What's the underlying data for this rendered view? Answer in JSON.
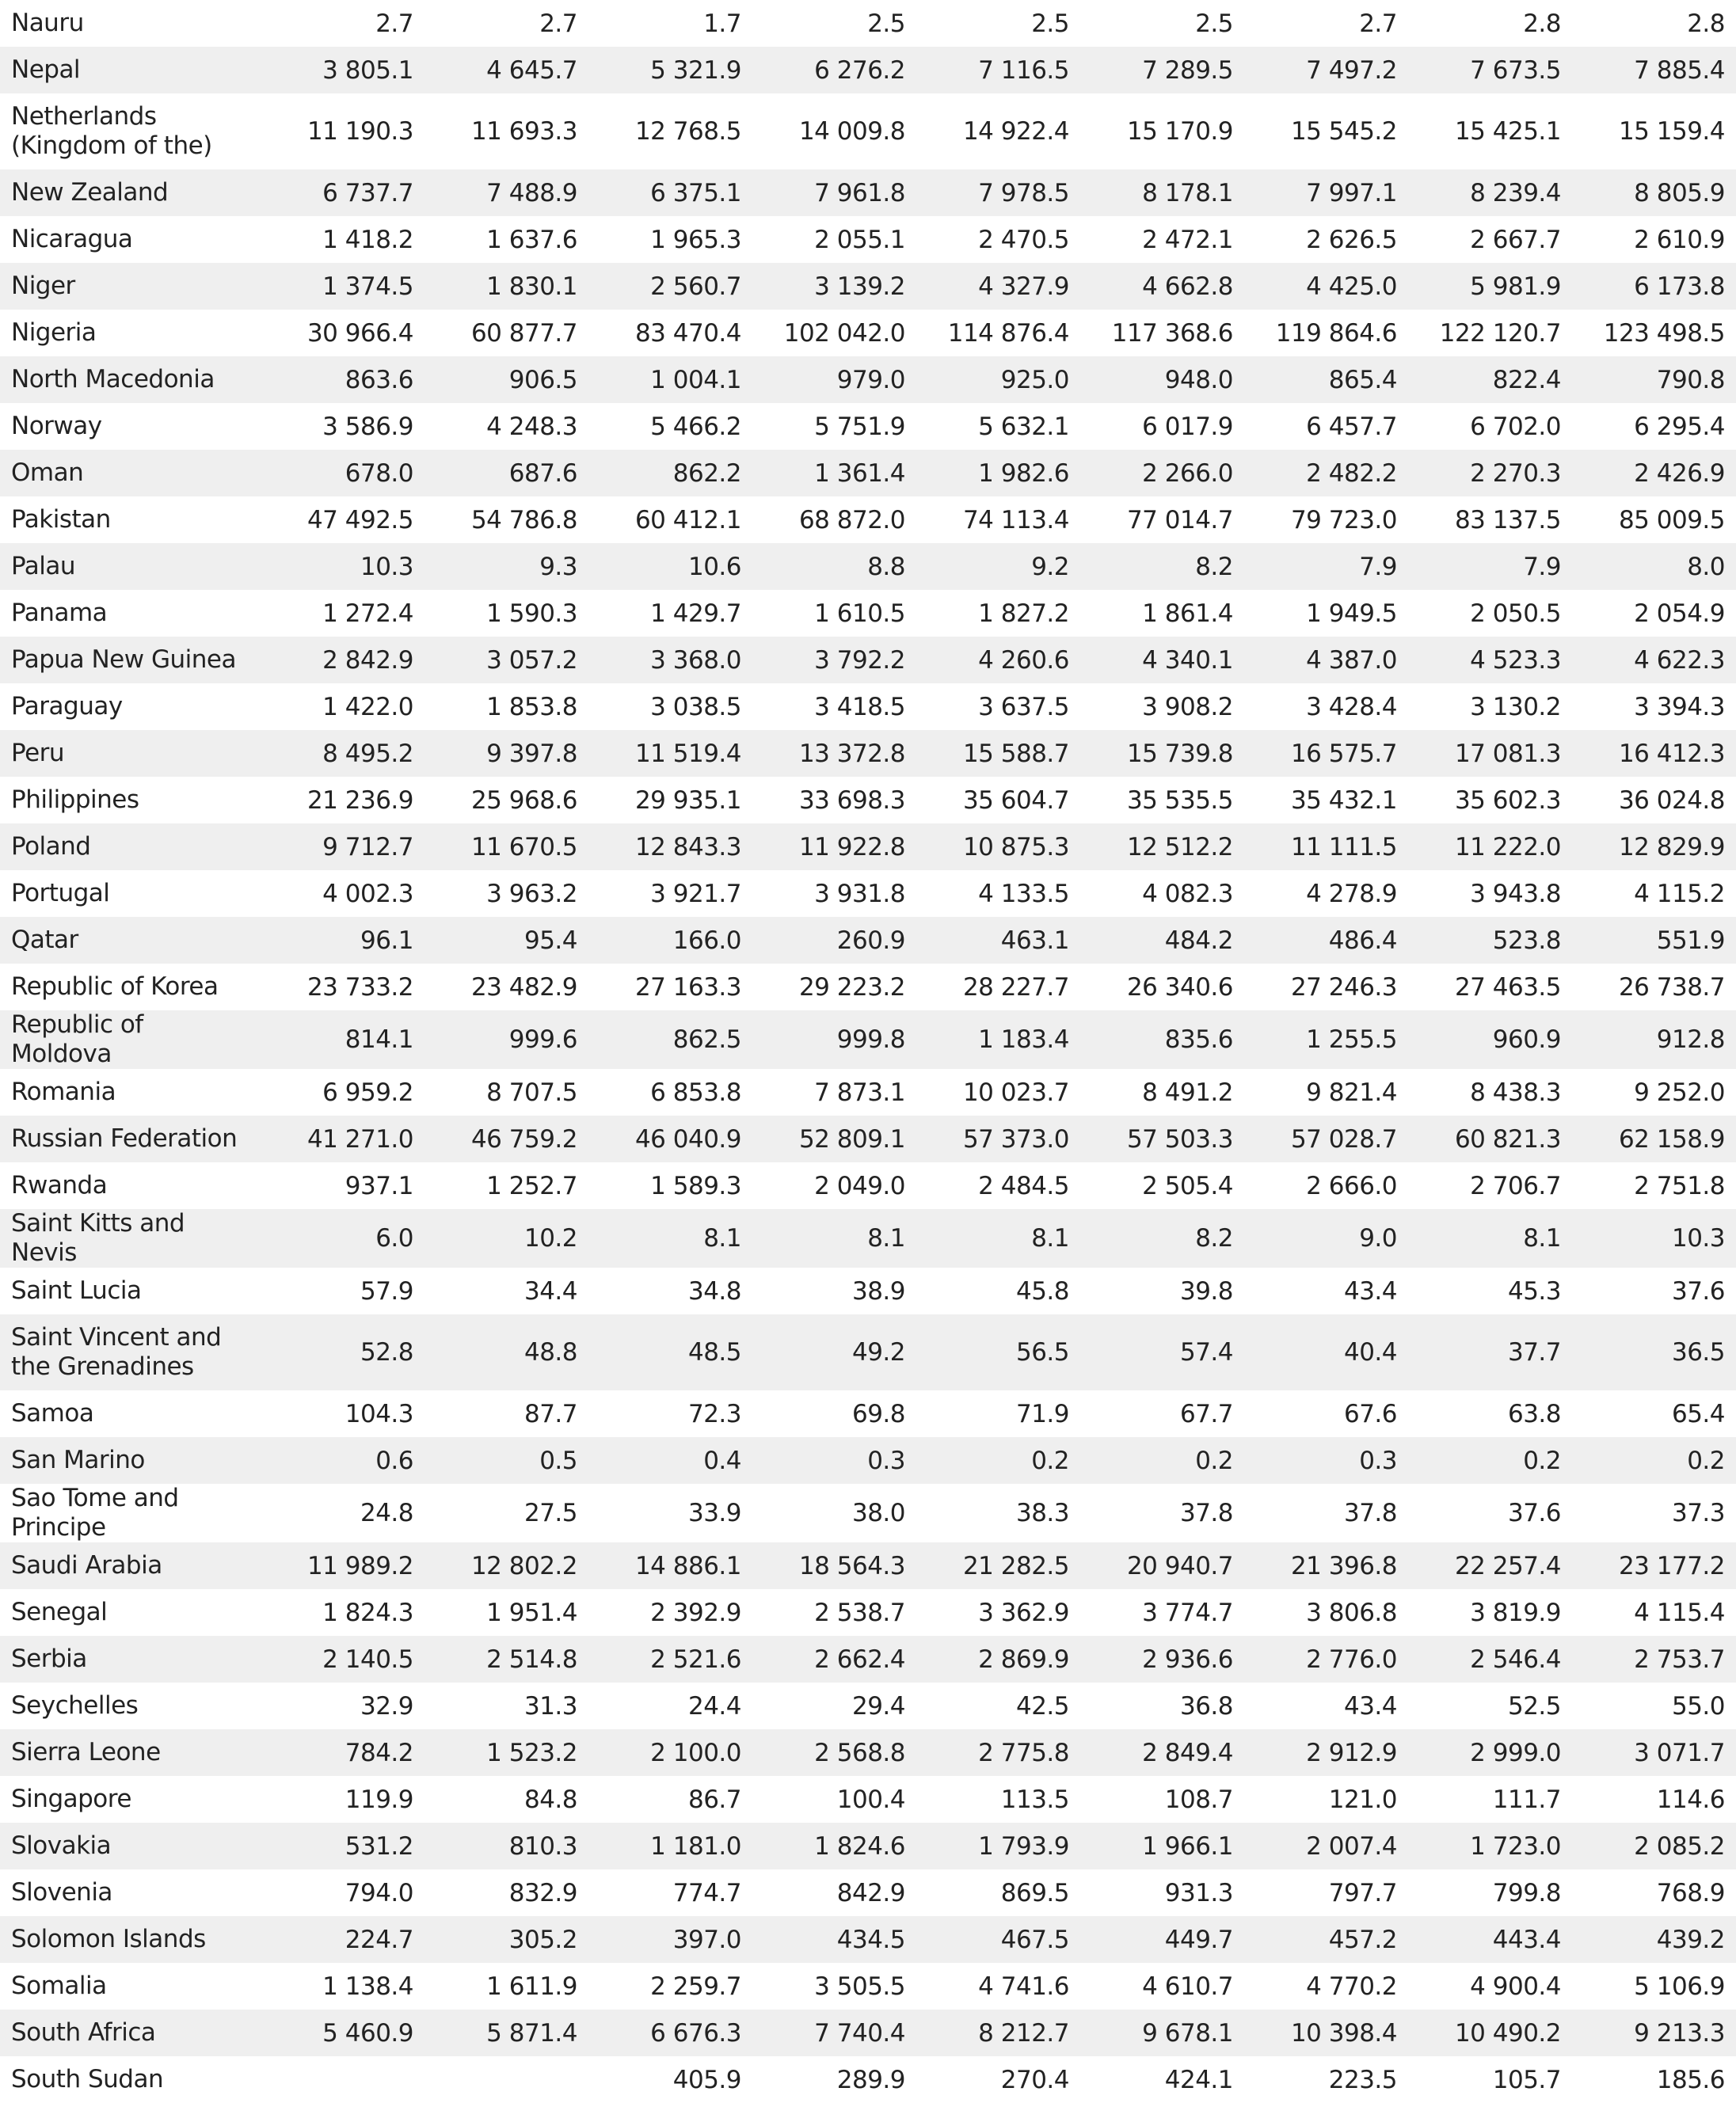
{
  "table": {
    "rows": [
      [
        "Nauru",
        "2.7",
        "2.7",
        "1.7",
        "2.5",
        "2.5",
        "2.5",
        "2.7",
        "2.8",
        "2.8"
      ],
      [
        "Nepal",
        "3 805.1",
        "4 645.7",
        "5 321.9",
        "6 276.2",
        "7 116.5",
        "7 289.5",
        "7 497.2",
        "7 673.5",
        "7 885.4"
      ],
      [
        "Netherlands (Kingdom of the)",
        "11 190.3",
        "11 693.3",
        "12 768.5",
        "14 009.8",
        "14 922.4",
        "15 170.9",
        "15 545.2",
        "15 425.1",
        "15 159.4"
      ],
      [
        "New Zealand",
        "6 737.7",
        "7 488.9",
        "6 375.1",
        "7 961.8",
        "7 978.5",
        "8 178.1",
        "7 997.1",
        "8 239.4",
        "8 805.9"
      ],
      [
        "Nicaragua",
        "1 418.2",
        "1 637.6",
        "1 965.3",
        "2 055.1",
        "2 470.5",
        "2 472.1",
        "2 626.5",
        "2 667.7",
        "2 610.9"
      ],
      [
        "Niger",
        "1 374.5",
        "1 830.1",
        "2 560.7",
        "3 139.2",
        "4 327.9",
        "4 662.8",
        "4 425.0",
        "5 981.9",
        "6 173.8"
      ],
      [
        "Nigeria",
        "30 966.4",
        "60 877.7",
        "83 470.4",
        "102 042.0",
        "114 876.4",
        "117 368.6",
        "119 864.6",
        "122 120.7",
        "123 498.5"
      ],
      [
        "North Macedonia",
        "863.6",
        "906.5",
        "1 004.1",
        "979.0",
        "925.0",
        "948.0",
        "865.4",
        "822.4",
        "790.8"
      ],
      [
        "Norway",
        "3 586.9",
        "4 248.3",
        "5 466.2",
        "5 751.9",
        "5 632.1",
        "6 017.9",
        "6 457.7",
        "6 702.0",
        "6 295.4"
      ],
      [
        "Oman",
        "678.0",
        "687.6",
        "862.2",
        "1 361.4",
        "1 982.6",
        "2 266.0",
        "2 482.2",
        "2 270.3",
        "2 426.9"
      ],
      [
        "Pakistan",
        "47 492.5",
        "54 786.8",
        "60 412.1",
        "68 872.0",
        "74 113.4",
        "77 014.7",
        "79 723.0",
        "83 137.5",
        "85 009.5"
      ],
      [
        "Palau",
        "10.3",
        "9.3",
        "10.6",
        "8.8",
        "9.2",
        "8.2",
        "7.9",
        "7.9",
        "8.0"
      ],
      [
        "Panama",
        "1 272.4",
        "1 590.3",
        "1 429.7",
        "1 610.5",
        "1 827.2",
        "1 861.4",
        "1 949.5",
        "2 050.5",
        "2 054.9"
      ],
      [
        "Papua New Guinea",
        "2 842.9",
        "3 057.2",
        "3 368.0",
        "3 792.2",
        "4 260.6",
        "4 340.1",
        "4 387.0",
        "4 523.3",
        "4 622.3"
      ],
      [
        "Paraguay",
        "1 422.0",
        "1 853.8",
        "3 038.5",
        "3 418.5",
        "3 637.5",
        "3 908.2",
        "3 428.4",
        "3 130.2",
        "3 394.3"
      ],
      [
        "Peru",
        "8 495.2",
        "9 397.8",
        "11 519.4",
        "13 372.8",
        "15 588.7",
        "15 739.8",
        "16 575.7",
        "17 081.3",
        "16 412.3"
      ],
      [
        "Philippines",
        "21 236.9",
        "25 968.6",
        "29 935.1",
        "33 698.3",
        "35 604.7",
        "35 535.5",
        "35 432.1",
        "35 602.3",
        "36 024.8"
      ],
      [
        "Poland",
        "9 712.7",
        "11 670.5",
        "12 843.3",
        "11 922.8",
        "10 875.3",
        "12 512.2",
        "11 111.5",
        "11 222.0",
        "12 829.9"
      ],
      [
        "Portugal",
        "4 002.3",
        "3 963.2",
        "3 921.7",
        "3 931.8",
        "4 133.5",
        "4 082.3",
        "4 278.9",
        "3 943.8",
        "4 115.2"
      ],
      [
        "Qatar",
        "96.1",
        "95.4",
        "166.0",
        "260.9",
        "463.1",
        "484.2",
        "486.4",
        "523.8",
        "551.9"
      ],
      [
        "Republic of Korea",
        "23 733.2",
        "23 482.9",
        "27 163.3",
        "29 223.2",
        "28 227.7",
        "26 340.6",
        "27 246.3",
        "27 463.5",
        "26 738.7"
      ],
      [
        "Republic of Moldova",
        "814.1",
        "999.6",
        "862.5",
        "999.8",
        "1 183.4",
        "835.6",
        "1 255.5",
        "960.9",
        "912.8"
      ],
      [
        "Romania",
        "6 959.2",
        "8 707.5",
        "6 853.8",
        "7 873.1",
        "10 023.7",
        "8 491.2",
        "9 821.4",
        "8 438.3",
        "9 252.0"
      ],
      [
        "Russian Federation",
        "41 271.0",
        "46 759.2",
        "46 040.9",
        "52 809.1",
        "57 373.0",
        "57 503.3",
        "57 028.7",
        "60 821.3",
        "62 158.9"
      ],
      [
        "Rwanda",
        "937.1",
        "1 252.7",
        "1 589.3",
        "2 049.0",
        "2 484.5",
        "2 505.4",
        "2 666.0",
        "2 706.7",
        "2 751.8"
      ],
      [
        "Saint Kitts and Nevis",
        "6.0",
        "10.2",
        "8.1",
        "8.1",
        "8.1",
        "8.2",
        "9.0",
        "8.1",
        "10.3"
      ],
      [
        "Saint Lucia",
        "57.9",
        "34.4",
        "34.8",
        "38.9",
        "45.8",
        "39.8",
        "43.4",
        "45.3",
        "37.6"
      ],
      [
        "Saint Vincent and the Grenadines",
        "52.8",
        "48.8",
        "48.5",
        "49.2",
        "56.5",
        "57.4",
        "40.4",
        "37.7",
        "36.5"
      ],
      [
        "Samoa",
        "104.3",
        "87.7",
        "72.3",
        "69.8",
        "71.9",
        "67.7",
        "67.6",
        "63.8",
        "65.4"
      ],
      [
        "San Marino",
        "0.6",
        "0.5",
        "0.4",
        "0.3",
        "0.2",
        "0.2",
        "0.3",
        "0.2",
        "0.2"
      ],
      [
        "Sao Tome and Principe",
        "24.8",
        "27.5",
        "33.9",
        "38.0",
        "38.3",
        "37.8",
        "37.8",
        "37.6",
        "37.3"
      ],
      [
        "Saudi Arabia",
        "11 989.2",
        "12 802.2",
        "14 886.1",
        "18 564.3",
        "21 282.5",
        "20 940.7",
        "21 396.8",
        "22 257.4",
        "23 177.2"
      ],
      [
        "Senegal",
        "1 824.3",
        "1 951.4",
        "2 392.9",
        "2 538.7",
        "3 362.9",
        "3 774.7",
        "3 806.8",
        "3 819.9",
        "4 115.4"
      ],
      [
        "Serbia",
        "2 140.5",
        "2 514.8",
        "2 521.6",
        "2 662.4",
        "2 869.9",
        "2 936.6",
        "2 776.0",
        "2 546.4",
        "2 753.7"
      ],
      [
        "Seychelles",
        "32.9",
        "31.3",
        "24.4",
        "29.4",
        "42.5",
        "36.8",
        "43.4",
        "52.5",
        "55.0"
      ],
      [
        "Sierra Leone",
        "784.2",
        "1 523.2",
        "2 100.0",
        "2 568.8",
        "2 775.8",
        "2 849.4",
        "2 912.9",
        "2 999.0",
        "3 071.7"
      ],
      [
        "Singapore",
        "119.9",
        "84.8",
        "86.7",
        "100.4",
        "113.5",
        "108.7",
        "121.0",
        "111.7",
        "114.6"
      ],
      [
        "Slovakia",
        "531.2",
        "810.3",
        "1 181.0",
        "1 824.6",
        "1 793.9",
        "1 966.1",
        "2 007.4",
        "1 723.0",
        "2 085.2"
      ],
      [
        "Slovenia",
        "794.0",
        "832.9",
        "774.7",
        "842.9",
        "869.5",
        "931.3",
        "797.7",
        "799.8",
        "768.9"
      ],
      [
        "Solomon Islands",
        "224.7",
        "305.2",
        "397.0",
        "434.5",
        "467.5",
        "449.7",
        "457.2",
        "443.4",
        "439.2"
      ],
      [
        "Somalia",
        "1 138.4",
        "1 611.9",
        "2 259.7",
        "3 505.5",
        "4 741.6",
        "4 610.7",
        "4 770.2",
        "4 900.4",
        "5 106.9"
      ],
      [
        "South Africa",
        "5 460.9",
        "5 871.4",
        "6 676.3",
        "7 740.4",
        "8 212.7",
        "9 678.1",
        "10 398.4",
        "10 490.2",
        "9 213.3"
      ],
      [
        "South Sudan",
        null,
        null,
        "405.9",
        "289.9",
        "270.4",
        "424.1",
        "223.5",
        "105.7",
        "185.6"
      ]
    ]
  }
}
